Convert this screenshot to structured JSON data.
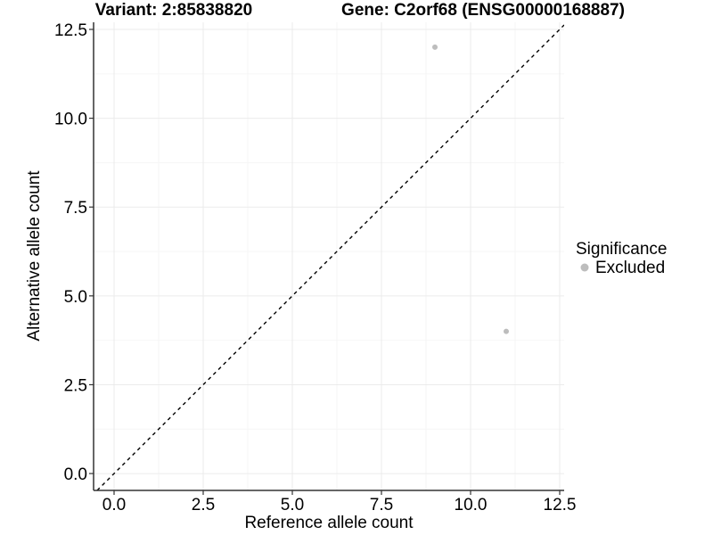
{
  "colors": {
    "background": "#ffffff",
    "axis": "#333333",
    "grid_major": "#ebebeb",
    "grid_minor": "#f5f5f5",
    "text": "#000000",
    "point": "#bdbdbd",
    "reference_line": "#000000"
  },
  "chart_data": {
    "type": "scatter",
    "title_left": "Variant: 2:85838820",
    "title_right": "Gene: C2orf68 (ENSG00000168887)",
    "xlabel": "Reference allele count",
    "ylabel": "Alternative allele count",
    "xlim": [
      -0.575,
      12.625
    ],
    "ylim": [
      -0.475,
      12.7
    ],
    "ticks": [
      0,
      2.5,
      5,
      7.5,
      10,
      12.5
    ],
    "tick_labels": [
      "0.0",
      "2.5",
      "5.0",
      "7.5",
      "10.0",
      "12.5"
    ],
    "grid": {
      "major": true,
      "minor": true,
      "minor_step": 1.25
    },
    "series": [
      {
        "name": "Excluded",
        "color": "#bdbdbd",
        "point_radius": 3,
        "points": [
          {
            "x": 9,
            "y": 12
          },
          {
            "x": 11,
            "y": 4
          }
        ]
      }
    ],
    "reference_line": {
      "kind": "identity y=x",
      "style": "dashed",
      "color": "#000000"
    },
    "legend": {
      "position": "right",
      "title": "Significance",
      "entries": [
        {
          "label": "Excluded",
          "color": "#bdbdbd"
        }
      ]
    }
  }
}
